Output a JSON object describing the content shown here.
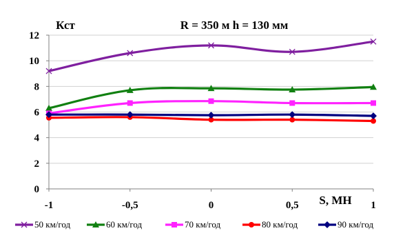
{
  "chart_data": {
    "type": "line",
    "title": "R = 350 м  h = 130 мм",
    "ylabel": "Кст",
    "xlabel": "S, МН",
    "x": [
      -1,
      -0.5,
      0,
      0.5,
      1
    ],
    "xticks": [
      "-1",
      "-0,5",
      "0",
      "0,5",
      "1"
    ],
    "yticks": [
      "0",
      "2",
      "4",
      "6",
      "8",
      "10",
      "12"
    ],
    "ylim": [
      0,
      12
    ],
    "xlim": [
      -1,
      1
    ],
    "grid": "horizontal",
    "legend_position": "bottom",
    "series": [
      {
        "name": "50 км/год",
        "values": [
          9.2,
          10.6,
          11.2,
          10.7,
          11.5
        ],
        "color": "#7f1f9f",
        "marker": "x"
      },
      {
        "name": "60 км/год",
        "values": [
          6.3,
          7.7,
          7.85,
          7.75,
          7.95
        ],
        "color": "#118011",
        "marker": "triangle"
      },
      {
        "name": "70 км/год",
        "values": [
          5.9,
          6.7,
          6.85,
          6.7,
          6.7
        ],
        "color": "#ff22ff",
        "marker": "square"
      },
      {
        "name": "80 км/год",
        "values": [
          5.55,
          5.6,
          5.4,
          5.4,
          5.3
        ],
        "color": "#ff0000",
        "marker": "circle"
      },
      {
        "name": "90 км/год",
        "values": [
          5.8,
          5.8,
          5.75,
          5.8,
          5.7
        ],
        "color": "#000080",
        "marker": "diamond"
      }
    ]
  }
}
